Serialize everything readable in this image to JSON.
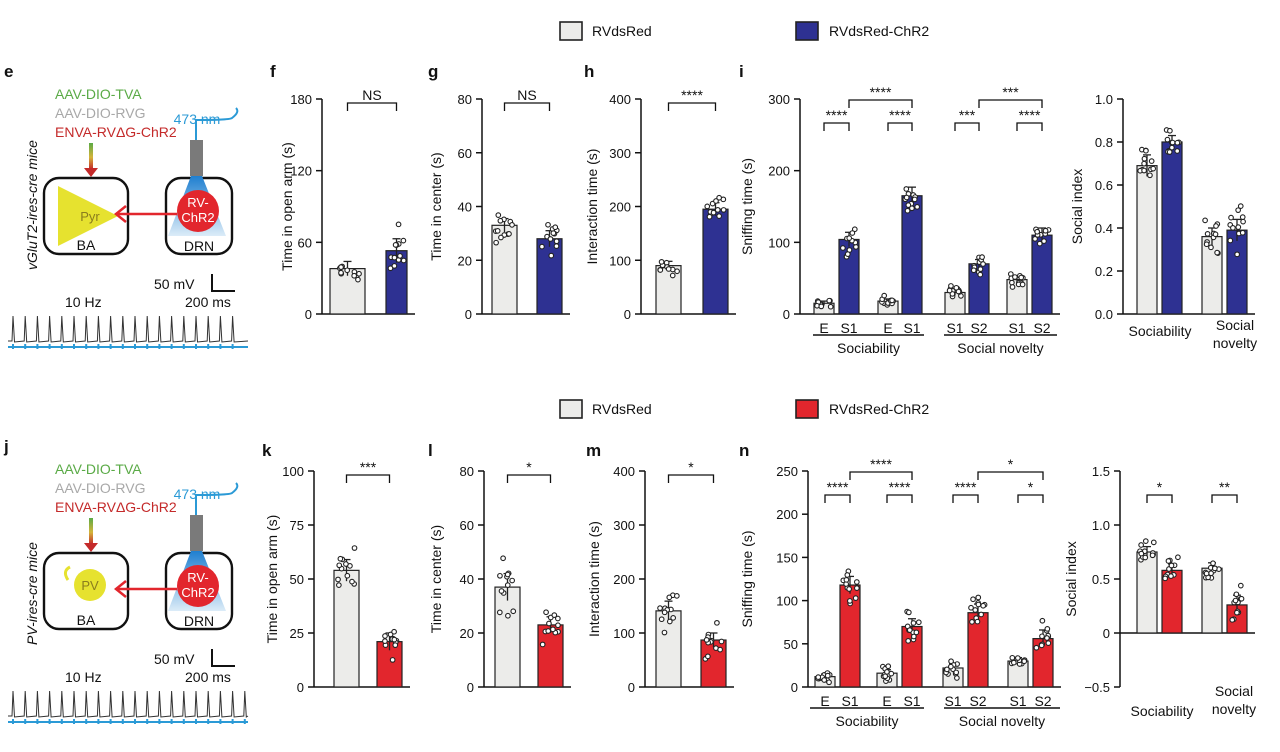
{
  "colors": {
    "light": "#ececea",
    "blue": "#2e3192",
    "red": "#e2262d",
    "green": "#5aaa46",
    "gray": "#a8a8a8",
    "darkred": "#c42a2a",
    "cyan": "#2b9ad6",
    "yellow": "#e6e22f",
    "fiber": "#7a7a7a"
  },
  "legend_top": {
    "control": "RVdsRed",
    "chr2": "RVdsRed-ChR2"
  },
  "legend_bottom": {
    "control": "RVdsRed",
    "chr2": "RVdsRed-ChR2"
  },
  "schematic_top": {
    "letter": "e",
    "mouse": "vGluT2-ires-cre mice",
    "virus1": "AAV-DIO-TVA",
    "virus2": "AAV-DIO-RVG",
    "virus3": "ENVA-RVΔG-ChR2",
    "laser": "473 nm",
    "cell_a": "Pyr",
    "cell_b": "RV-\nChR2",
    "region_a": "BA",
    "region_b": "DRN",
    "scale_v": "50 mV",
    "scale_t": "200 ms",
    "freq": "10 Hz"
  },
  "schematic_bottom": {
    "letter": "j",
    "mouse": "PV-ires-cre mice",
    "virus1": "AAV-DIO-TVA",
    "virus2": "AAV-DIO-RVG",
    "virus3": "ENVA-RVΔG-ChR2",
    "laser": "473 nm",
    "cell_a": "PV",
    "cell_b": "RV-\nChR2",
    "region_a": "BA",
    "region_b": "DRN",
    "scale_v": "50 mV",
    "scale_t": "200 ms",
    "freq": "10 Hz"
  },
  "chart_data": [
    {
      "id": "f",
      "type": "bar",
      "ylabel": "Time in open arm (s)",
      "ylim": [
        0,
        180
      ],
      "yticks": [
        0,
        60,
        120,
        180
      ],
      "categories": [
        "RVdsRed",
        "RVdsRed-ChR2"
      ],
      "values": [
        38,
        53
      ],
      "sem": [
        6,
        10
      ],
      "stats": [
        {
          "a": 0,
          "b": 1,
          "label": "NS"
        }
      ]
    },
    {
      "id": "g",
      "type": "bar",
      "ylabel": "Time in center (s)",
      "ylim": [
        0,
        80
      ],
      "yticks": [
        0,
        20,
        40,
        60,
        80
      ],
      "categories": [
        "RVdsRed",
        "RVdsRed-ChR2"
      ],
      "values": [
        33,
        28
      ],
      "sem": [
        2.5,
        3
      ],
      "stats": [
        {
          "a": 0,
          "b": 1,
          "label": "NS"
        }
      ]
    },
    {
      "id": "h",
      "type": "bar",
      "ylabel": "Interaction time (s)",
      "ylim": [
        0,
        400
      ],
      "yticks": [
        0,
        100,
        200,
        300,
        400
      ],
      "categories": [
        "RVdsRed",
        "RVdsRed-ChR2"
      ],
      "values": [
        90,
        195
      ],
      "sem": [
        8,
        12
      ],
      "stats": [
        {
          "a": 0,
          "b": 1,
          "label": "****"
        }
      ]
    },
    {
      "id": "i",
      "type": "bar",
      "ylabel": "Sniffing time (s)",
      "ylim": [
        0,
        300
      ],
      "yticks": [
        0,
        100,
        200,
        300
      ],
      "categories": [
        "E",
        "S1",
        "E",
        "S1",
        "S1",
        "S2",
        "S1",
        "S2"
      ],
      "values": [
        15,
        104,
        18,
        165,
        30,
        70,
        48,
        110
      ],
      "sem": [
        3,
        10,
        3,
        12,
        4,
        6,
        5,
        10
      ],
      "group_labels": [
        "Sociability",
        "Social novelty"
      ],
      "stats": [
        {
          "a": 0,
          "b": 1,
          "label": "****"
        },
        {
          "a": 2,
          "b": 3,
          "label": "****"
        },
        {
          "a": 1,
          "b": 3,
          "label": "****"
        },
        {
          "a": 4,
          "b": 5,
          "label": "***"
        },
        {
          "a": 6,
          "b": 7,
          "label": "****"
        },
        {
          "a": 5,
          "b": 7,
          "label": "***"
        }
      ]
    },
    {
      "id": "i2",
      "type": "bar",
      "ylabel": "Social index",
      "ylim": [
        0,
        1
      ],
      "yticks": [
        0,
        0.2,
        0.4,
        0.6,
        0.8,
        1.0
      ],
      "ytick_labels": [
        "0.0",
        "0.2",
        "0.4",
        "0.6",
        "0.8",
        "1.0"
      ],
      "categories": [
        "Sociability",
        "",
        "Social\nnovelty",
        ""
      ],
      "values": [
        0.69,
        0.8,
        0.36,
        0.39
      ],
      "sem": [
        0.05,
        0.03,
        0.04,
        0.05
      ],
      "stats": []
    },
    {
      "id": "k",
      "type": "bar",
      "ylabel": "Time in open arm (s)",
      "ylim": [
        0,
        100
      ],
      "yticks": [
        0,
        25,
        50,
        75,
        100
      ],
      "categories": [
        "RVdsRed",
        "RVdsRed-ChR2"
      ],
      "values": [
        54,
        21
      ],
      "sem": [
        5,
        4
      ],
      "stats": [
        {
          "a": 0,
          "b": 1,
          "label": "***"
        }
      ]
    },
    {
      "id": "l",
      "type": "bar",
      "ylabel": "Time in center (s)",
      "ylim": [
        0,
        80
      ],
      "yticks": [
        0,
        20,
        40,
        60,
        80
      ],
      "categories": [
        "RVdsRed",
        "RVdsRed-ChR2"
      ],
      "values": [
        37,
        23
      ],
      "sem": [
        5,
        3
      ],
      "stats": [
        {
          "a": 0,
          "b": 1,
          "label": "*"
        }
      ]
    },
    {
      "id": "m",
      "type": "bar",
      "ylabel": "Interaction time (s)",
      "ylim": [
        0,
        400
      ],
      "yticks": [
        0,
        100,
        200,
        300,
        400
      ],
      "categories": [
        "RVdsRed",
        "RVdsRed-ChR2"
      ],
      "values": [
        141,
        87
      ],
      "sem": [
        18,
        13
      ],
      "stats": [
        {
          "a": 0,
          "b": 1,
          "label": "*"
        }
      ]
    },
    {
      "id": "n",
      "type": "bar",
      "ylabel": "Sniffing time (s)",
      "ylim": [
        0,
        250
      ],
      "yticks": [
        0,
        50,
        100,
        150,
        200,
        250
      ],
      "categories": [
        "E",
        "S1",
        "E",
        "S1",
        "S1",
        "S2",
        "S1",
        "S2"
      ],
      "values": [
        12,
        118,
        16,
        70,
        22,
        86,
        30,
        56
      ],
      "sem": [
        3,
        10,
        4,
        9,
        5,
        10,
        4,
        10
      ],
      "group_labels": [
        "Sociability",
        "Social novelty"
      ],
      "stats": [
        {
          "a": 0,
          "b": 1,
          "label": "****"
        },
        {
          "a": 2,
          "b": 3,
          "label": "****"
        },
        {
          "a": 1,
          "b": 3,
          "label": "****"
        },
        {
          "a": 4,
          "b": 5,
          "label": "****"
        },
        {
          "a": 6,
          "b": 7,
          "label": "*"
        },
        {
          "a": 5,
          "b": 7,
          "label": "*"
        }
      ]
    },
    {
      "id": "n2",
      "type": "bar",
      "ylabel": "Social index",
      "ylim": [
        -0.5,
        1.5
      ],
      "yticks": [
        -0.5,
        0,
        0.5,
        1.0,
        1.5
      ],
      "ytick_labels": [
        "−0.5",
        "0",
        "0.5",
        "1.0",
        "1.5"
      ],
      "categories": [
        "Sociability",
        "",
        "Social\nnovelty",
        ""
      ],
      "values": [
        0.75,
        0.58,
        0.6,
        0.26
      ],
      "sem": [
        0.05,
        0.06,
        0.05,
        0.09
      ],
      "stats": [
        {
          "a": 0,
          "b": 1,
          "label": "*"
        },
        {
          "a": 2,
          "b": 3,
          "label": "**"
        }
      ]
    }
  ]
}
